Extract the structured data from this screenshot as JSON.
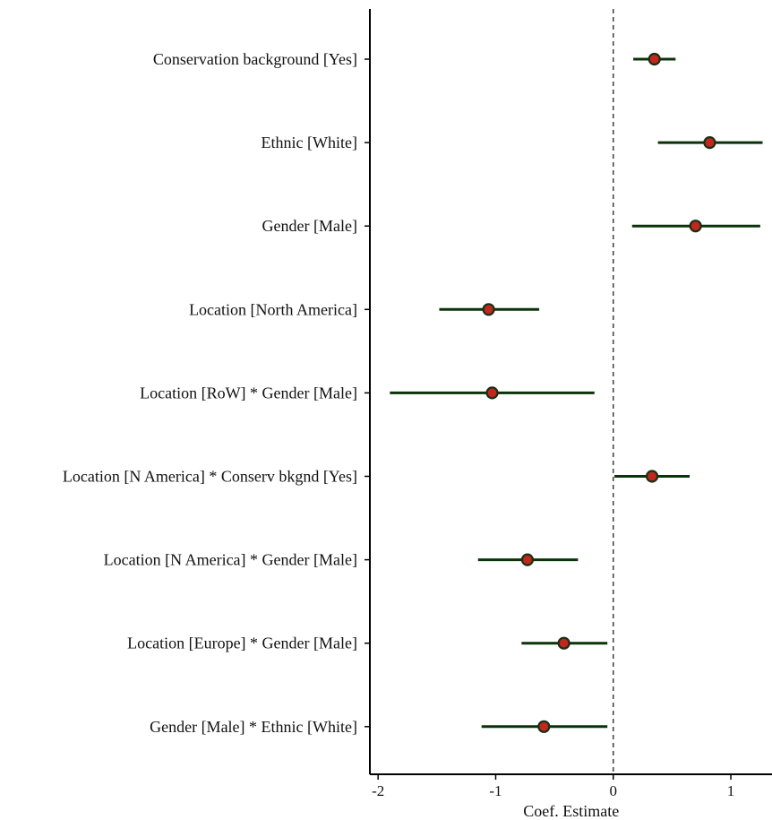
{
  "chart_data": {
    "type": "scatter",
    "subtype": "coefficient-plot",
    "title": "",
    "xlabel": "Coef. Estimate",
    "ylabel": "",
    "xlim": [
      -2.07,
      1.35
    ],
    "x_ticks": [
      -2,
      -1,
      0,
      1
    ],
    "x_tick_labels": [
      "-2",
      "-1",
      "0",
      "1"
    ],
    "reference_line": {
      "x": 0,
      "style": "dashed"
    },
    "grid": false,
    "legend": "none",
    "colors": {
      "point_fill": "#c0281e",
      "point_edge": "#1a2e14",
      "interval": "#0b3309",
      "axis": "#000000"
    },
    "terms": [
      {
        "label": "Conservation background [Yes]",
        "estimate": 0.35,
        "low": 0.17,
        "high": 0.53
      },
      {
        "label": "Ethnic [White]",
        "estimate": 0.82,
        "low": 0.38,
        "high": 1.27
      },
      {
        "label": "Gender [Male]",
        "estimate": 0.7,
        "low": 0.16,
        "high": 1.25
      },
      {
        "label": "Location [North America]",
        "estimate": -1.06,
        "low": -1.48,
        "high": -0.63
      },
      {
        "label": "Location [RoW] * Gender [Male]",
        "estimate": -1.03,
        "low": -1.9,
        "high": -0.16
      },
      {
        "label": "Location [N America] * Conserv bkgnd [Yes]",
        "estimate": 0.33,
        "low": 0.01,
        "high": 0.65
      },
      {
        "label": "Location [N America] * Gender [Male]",
        "estimate": -0.73,
        "low": -1.15,
        "high": -0.3
      },
      {
        "label": "Location [Europe] * Gender [Male]",
        "estimate": -0.42,
        "low": -0.78,
        "high": -0.05
      },
      {
        "label": "Gender [Male] * Ethnic [White]",
        "estimate": -0.59,
        "low": -1.12,
        "high": -0.05
      }
    ]
  }
}
